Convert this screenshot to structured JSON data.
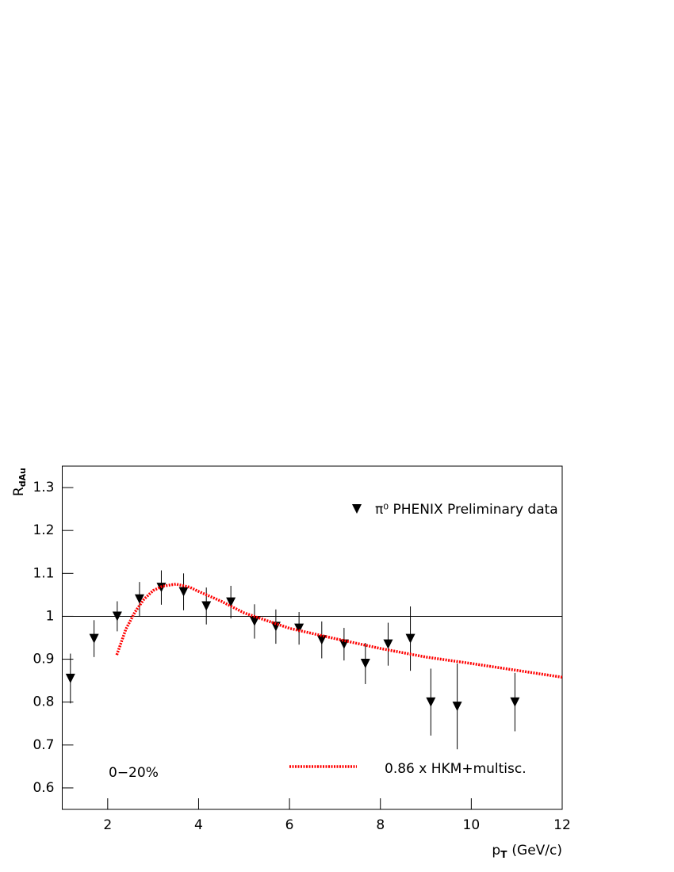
{
  "chart_data": {
    "type": "scatter",
    "ylabel": "R",
    "ylabel_sub": "dAu",
    "xlabel": "p",
    "xlabel_sub": "T",
    "xlabel_unit": "(GeV/c)",
    "annotation": "0−20%",
    "xlim": [
      1,
      12
    ],
    "xticks": [
      2,
      4,
      6,
      8,
      10,
      12
    ],
    "ylim": [
      0.55,
      1.35
    ],
    "yticks": [
      0.6,
      0.7,
      0.8,
      0.9,
      1,
      1.1,
      1.2,
      1.3
    ],
    "reference_line": 1,
    "series": [
      {
        "name": "π⁰ PHENIX Preliminary data",
        "type": "scatter",
        "color": "#000000",
        "x": [
          1.18,
          1.7,
          2.21,
          2.7,
          3.18,
          3.67,
          4.17,
          4.71,
          5.23,
          5.7,
          6.21,
          6.71,
          7.2,
          7.67,
          8.17,
          8.66,
          9.11,
          9.69,
          10.96
        ],
        "values": [
          0.855,
          0.948,
          1.0,
          1.04,
          1.067,
          1.057,
          1.024,
          1.033,
          0.988,
          0.976,
          0.972,
          0.945,
          0.935,
          0.89,
          0.935,
          0.948,
          0.8,
          0.79,
          0.8
        ],
        "errors": [
          0.058,
          0.043,
          0.035,
          0.04,
          0.04,
          0.043,
          0.043,
          0.038,
          0.04,
          0.04,
          0.038,
          0.043,
          0.038,
          0.048,
          0.05,
          0.075,
          0.078,
          0.1,
          0.068
        ]
      },
      {
        "name": "0.86 x HKM+multisc.",
        "type": "line",
        "color": "#ff0000",
        "x": [
          2.2,
          2.4,
          2.6,
          2.8,
          3.0,
          3.2,
          3.5,
          3.8,
          4.0,
          4.5,
          5.0,
          5.5,
          6,
          7,
          8,
          9,
          10,
          11,
          12
        ],
        "values": [
          0.91,
          0.97,
          1.01,
          1.04,
          1.06,
          1.07,
          1.075,
          1.068,
          1.058,
          1.035,
          1.008,
          0.99,
          0.972,
          0.948,
          0.925,
          0.905,
          0.89,
          0.874,
          0.858
        ]
      }
    ]
  }
}
